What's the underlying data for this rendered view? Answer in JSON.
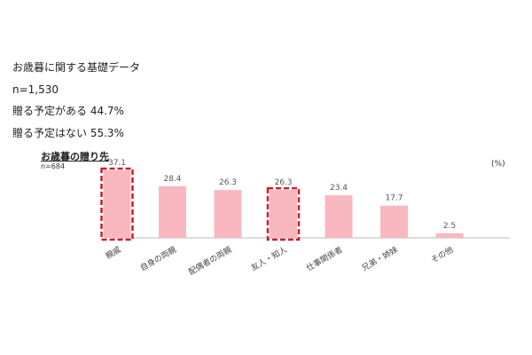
{
  "info": {
    "lines": [
      "お歳暮に関する基礎データ",
      "n=1,530",
      "贈る予定がある 44.7%",
      "贈る予定はない 55.3%"
    ]
  },
  "chart_data": {
    "type": "bar",
    "title": "お歳暮の贈り先",
    "subtitle": "n=684",
    "unit_label": "(%)",
    "categories": [
      "親戚",
      "自身の両親",
      "配偶者の両親",
      "友人・知人",
      "仕事関係者",
      "兄弟・姉妹",
      "その他"
    ],
    "values": [
      37.1,
      28.4,
      26.3,
      26.3,
      23.4,
      17.7,
      2.5
    ],
    "highlighted": [
      "親戚",
      "友人・知人"
    ],
    "ylim": [
      0,
      40
    ],
    "grid": false,
    "colors": {
      "bar": "#f9b8c0",
      "highlight_border": "#cc1f2a",
      "baseline": "#bbbbbb",
      "label": "#555555"
    }
  }
}
